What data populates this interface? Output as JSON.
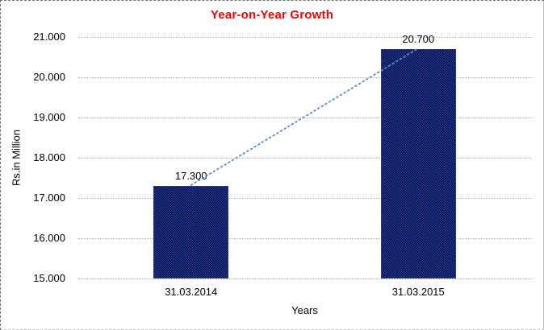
{
  "chart_data": {
    "type": "bar",
    "title": "Year-on-Year Growth",
    "title_color": "#ff0000",
    "categories": [
      "31.03.2014",
      "31.03.2015"
    ],
    "values": [
      17.3,
      20.7
    ],
    "value_labels": [
      "17.300",
      "20.700"
    ],
    "xlabel": "Years",
    "ylabel": "Rs.in Million",
    "ylim": [
      15.0,
      21.0
    ],
    "ytick_step": 1.0,
    "ytick_labels": [
      "15.000",
      "16.000",
      "17.000",
      "18.000",
      "19.000",
      "20.000",
      "21.000"
    ],
    "grid": "horizontal-dotted",
    "gridline_color": "#b3b3b3",
    "legend_position": "none",
    "bar_color": "#15236b",
    "bar_pattern": "fine-checker-blue-black",
    "trendline": {
      "style": "dotted",
      "color": "#5b8bd3",
      "connects": [
        "bar-top-center-31.03.2014",
        "bar-top-center-31.03.2015"
      ]
    }
  }
}
